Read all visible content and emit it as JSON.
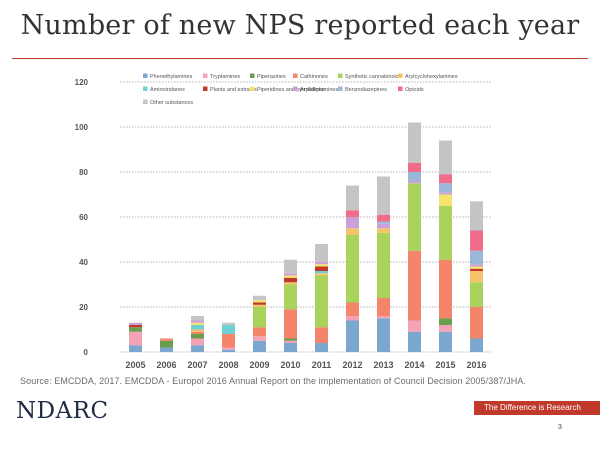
{
  "title": "Number of new NPS reported each year",
  "source": "Source: EMCDDA, 2017. EMCDDA - Europol 2016 Annual Report on the implementation of Council Decision 2005/387/JHA.",
  "footer": {
    "logo_text": "NDARC",
    "tagline": "The Difference is Research",
    "page_number": "3"
  },
  "chart_data": {
    "type": "bar",
    "stacked": true,
    "title": "",
    "xlabel": "",
    "ylabel": "",
    "ylim": [
      0,
      120
    ],
    "yticks": [
      0,
      20,
      40,
      60,
      80,
      100,
      120
    ],
    "grid": true,
    "legend_position": "top",
    "categories": [
      "2005",
      "2006",
      "2007",
      "2008",
      "2009",
      "2010",
      "2011",
      "2012",
      "2013",
      "2014",
      "2015",
      "2016"
    ],
    "series": [
      {
        "name": "Phenethylamines",
        "color": "#7ba7cf",
        "values": [
          3,
          2,
          3,
          1,
          5,
          4,
          4,
          14,
          15,
          9,
          9,
          6
        ]
      },
      {
        "name": "Tryptamines",
        "color": "#f4a3b5",
        "values": [
          6,
          0,
          3,
          1,
          2,
          1,
          0,
          2,
          1,
          5,
          3,
          0
        ]
      },
      {
        "name": "Piperazines",
        "color": "#6a9d4e",
        "values": [
          2,
          3,
          2,
          0,
          0,
          1,
          0,
          0,
          0,
          0,
          3,
          0
        ]
      },
      {
        "name": "Cathinones",
        "color": "#f4846a",
        "values": [
          0,
          1,
          1,
          6,
          4,
          13,
          7,
          6,
          8,
          31,
          26,
          14
        ]
      },
      {
        "name": "Synthetic cannabinoids",
        "color": "#a9d35a",
        "values": [
          0,
          0,
          0,
          0,
          9,
          11,
          23,
          30,
          29,
          30,
          24,
          11
        ]
      },
      {
        "name": "Arylcyclohexylamines",
        "color": "#f6c36b",
        "values": [
          0,
          0,
          1,
          0,
          1,
          1,
          1,
          3,
          2,
          0,
          0,
          5
        ]
      },
      {
        "name": "Aminoindanes",
        "color": "#6fd0d6",
        "values": [
          0,
          0,
          2,
          4,
          0,
          0,
          1,
          0,
          0,
          0,
          0,
          0
        ]
      },
      {
        "name": "Plants and extracts",
        "color": "#c0392b",
        "values": [
          1,
          0,
          0,
          0,
          1,
          2,
          2,
          0,
          0,
          0,
          0,
          1
        ]
      },
      {
        "name": "Piperidines and pyrrolidines",
        "color": "#f7e36b",
        "values": [
          0,
          0,
          1,
          0,
          1,
          1,
          1,
          0,
          0,
          0,
          5,
          1
        ]
      },
      {
        "name": "Arylalkylamines",
        "color": "#c9a3d8",
        "values": [
          1,
          0,
          1,
          0,
          0,
          1,
          1,
          5,
          2,
          1,
          1,
          1
        ]
      },
      {
        "name": "Benzodiazepines",
        "color": "#9bb7da",
        "values": [
          0,
          0,
          0,
          0,
          0,
          0,
          0,
          0,
          1,
          4,
          4,
          6
        ]
      },
      {
        "name": "Opioids",
        "color": "#f06c8a",
        "values": [
          0,
          0,
          0,
          0,
          0,
          0,
          0,
          3,
          3,
          4,
          4,
          9
        ]
      },
      {
        "name": "Other substances",
        "color": "#c5c5c5",
        "values": [
          0,
          0,
          2,
          1,
          2,
          6,
          8,
          11,
          17,
          18,
          15,
          13
        ]
      }
    ]
  }
}
